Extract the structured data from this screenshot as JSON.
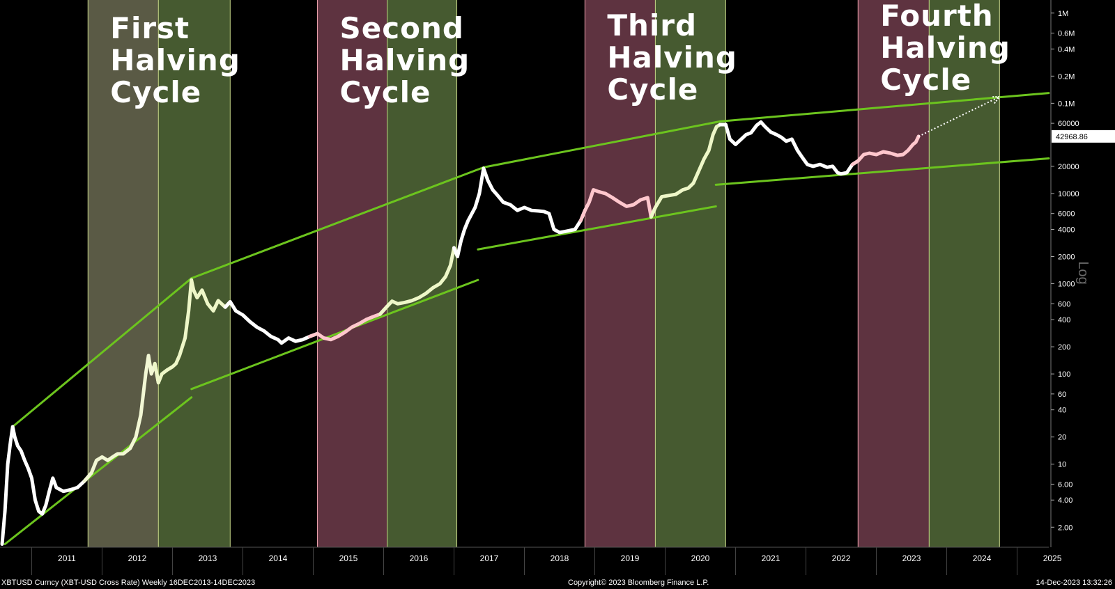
{
  "chart_data": {
    "type": "line",
    "y_scale": "log",
    "y_axis_title": "Log",
    "y_ticks": [
      "1M",
      "0.6M",
      "0.4M",
      "0.2M",
      "0.1M",
      "60000",
      "20000",
      "10000",
      "6000",
      "4000",
      "2000",
      "1000",
      "600",
      "400",
      "200",
      "100",
      "60",
      "40",
      "20",
      "10",
      "6.00",
      "4.00",
      "2.00"
    ],
    "y_tick_values": [
      1000000,
      600000,
      400000,
      200000,
      100000,
      60000,
      20000,
      10000,
      6000,
      4000,
      2000,
      1000,
      600,
      400,
      200,
      100,
      60,
      40,
      20,
      10,
      6,
      4,
      2
    ],
    "x_ticks": [
      "2011",
      "2012",
      "2013",
      "2014",
      "2015",
      "2016",
      "2017",
      "2018",
      "2019",
      "2020",
      "2021",
      "2022",
      "2023",
      "2024",
      "2025"
    ],
    "x_range": [
      2010.55,
      2025.45
    ],
    "y_range": [
      1.2,
      1300000
    ],
    "last_value_label": "42968.86",
    "cycles": [
      {
        "name": "First Halving Cycle",
        "label": "First\nHalving\nCycle",
        "pre_band": {
          "start": 2011.8,
          "end": 2012.8,
          "color": "#5a5a45"
        },
        "post_band": {
          "start": 2012.8,
          "end": 2013.82,
          "color": "#465a30"
        }
      },
      {
        "name": "Second Halving Cycle",
        "label": "Second\nHalving\nCycle",
        "pre_band": {
          "start": 2015.06,
          "end": 2016.05,
          "color": "#5e3340"
        },
        "post_band": {
          "start": 2016.05,
          "end": 2017.04,
          "color": "#465a30"
        }
      },
      {
        "name": "Third Halving Cycle",
        "label": "Third\nHalving\nCycle",
        "pre_band": {
          "start": 2018.86,
          "end": 2019.86,
          "color": "#5e3340"
        },
        "post_band": {
          "start": 2019.86,
          "end": 2020.86,
          "color": "#465a30"
        }
      },
      {
        "name": "Fourth Halving Cycle",
        "label": "Fourth\nHalving\nCycle",
        "pre_band": {
          "start": 2022.74,
          "end": 2023.75,
          "color": "#5e3340"
        },
        "post_band": {
          "start": 2023.75,
          "end": 2024.75,
          "color": "#465a30"
        }
      }
    ],
    "price_series": {
      "name": "XBTUSD",
      "points": [
        [
          2010.58,
          1.3
        ],
        [
          2010.62,
          3
        ],
        [
          2010.66,
          10
        ],
        [
          2010.7,
          18
        ],
        [
          2010.73,
          26
        ],
        [
          2010.76,
          20
        ],
        [
          2010.8,
          16
        ],
        [
          2010.85,
          14
        ],
        [
          2010.9,
          11
        ],
        [
          2010.95,
          9
        ],
        [
          2011.0,
          7
        ],
        [
          2011.05,
          4
        ],
        [
          2011.1,
          3
        ],
        [
          2011.15,
          2.8
        ],
        [
          2011.2,
          3.5
        ],
        [
          2011.25,
          5
        ],
        [
          2011.3,
          7
        ],
        [
          2011.35,
          5.5
        ],
        [
          2011.45,
          5
        ],
        [
          2011.55,
          5.2
        ],
        [
          2011.65,
          5.5
        ],
        [
          2011.75,
          6.5
        ],
        [
          2011.85,
          8
        ],
        [
          2011.92,
          11
        ],
        [
          2012.0,
          12
        ],
        [
          2012.08,
          11
        ],
        [
          2012.15,
          12
        ],
        [
          2012.22,
          13
        ],
        [
          2012.3,
          13
        ],
        [
          2012.4,
          15
        ],
        [
          2012.48,
          20
        ],
        [
          2012.55,
          35
        ],
        [
          2012.62,
          100
        ],
        [
          2012.66,
          160
        ],
        [
          2012.7,
          100
        ],
        [
          2012.75,
          130
        ],
        [
          2012.8,
          80
        ],
        [
          2012.85,
          100
        ],
        [
          2012.92,
          110
        ],
        [
          2013.0,
          120
        ],
        [
          2013.05,
          130
        ],
        [
          2013.1,
          160
        ],
        [
          2013.18,
          250
        ],
        [
          2013.23,
          500
        ],
        [
          2013.27,
          1100
        ],
        [
          2013.3,
          850
        ],
        [
          2013.35,
          700
        ],
        [
          2013.42,
          850
        ],
        [
          2013.5,
          600
        ],
        [
          2013.58,
          500
        ],
        [
          2013.65,
          650
        ],
        [
          2013.75,
          550
        ],
        [
          2013.82,
          630
        ],
        [
          2013.9,
          500
        ],
        [
          2014.0,
          450
        ],
        [
          2014.1,
          380
        ],
        [
          2014.2,
          330
        ],
        [
          2014.3,
          300
        ],
        [
          2014.4,
          260
        ],
        [
          2014.5,
          240
        ],
        [
          2014.55,
          220
        ],
        [
          2014.65,
          250
        ],
        [
          2014.75,
          230
        ],
        [
          2014.85,
          240
        ],
        [
          2014.95,
          260
        ],
        [
          2015.06,
          280
        ],
        [
          2015.15,
          250
        ],
        [
          2015.25,
          240
        ],
        [
          2015.35,
          260
        ],
        [
          2015.45,
          290
        ],
        [
          2015.55,
          330
        ],
        [
          2015.65,
          360
        ],
        [
          2015.75,
          400
        ],
        [
          2015.85,
          430
        ],
        [
          2015.95,
          460
        ],
        [
          2016.05,
          560
        ],
        [
          2016.12,
          640
        ],
        [
          2016.2,
          600
        ],
        [
          2016.3,
          620
        ],
        [
          2016.4,
          650
        ],
        [
          2016.5,
          700
        ],
        [
          2016.6,
          780
        ],
        [
          2016.7,
          900
        ],
        [
          2016.8,
          1000
        ],
        [
          2016.88,
          1200
        ],
        [
          2016.95,
          1600
        ],
        [
          2017.0,
          2500
        ],
        [
          2017.05,
          2000
        ],
        [
          2017.1,
          3000
        ],
        [
          2017.15,
          4000
        ],
        [
          2017.2,
          5000
        ],
        [
          2017.3,
          7000
        ],
        [
          2017.36,
          10000
        ],
        [
          2017.42,
          19000
        ],
        [
          2017.48,
          14000
        ],
        [
          2017.55,
          11000
        ],
        [
          2017.62,
          9500
        ],
        [
          2017.7,
          8000
        ],
        [
          2017.8,
          7500
        ],
        [
          2017.9,
          6500
        ],
        [
          2018.0,
          7000
        ],
        [
          2018.1,
          6500
        ],
        [
          2018.2,
          6400
        ],
        [
          2018.28,
          6300
        ],
        [
          2018.35,
          6000
        ],
        [
          2018.42,
          4000
        ],
        [
          2018.5,
          3700
        ],
        [
          2018.58,
          3800
        ],
        [
          2018.65,
          3900
        ],
        [
          2018.72,
          4000
        ],
        [
          2018.8,
          5000
        ],
        [
          2018.86,
          6500
        ],
        [
          2018.92,
          8000
        ],
        [
          2018.98,
          11000
        ],
        [
          2019.05,
          10500
        ],
        [
          2019.15,
          10000
        ],
        [
          2019.25,
          9000
        ],
        [
          2019.35,
          8000
        ],
        [
          2019.45,
          7200
        ],
        [
          2019.55,
          7500
        ],
        [
          2019.65,
          8500
        ],
        [
          2019.75,
          9000
        ],
        [
          2019.8,
          5500
        ],
        [
          2019.86,
          7000
        ],
        [
          2019.95,
          9200
        ],
        [
          2020.05,
          9500
        ],
        [
          2020.15,
          9800
        ],
        [
          2020.25,
          11000
        ],
        [
          2020.33,
          11500
        ],
        [
          2020.4,
          13000
        ],
        [
          2020.48,
          18000
        ],
        [
          2020.55,
          24000
        ],
        [
          2020.62,
          30000
        ],
        [
          2020.68,
          45000
        ],
        [
          2020.73,
          55000
        ],
        [
          2020.78,
          58000
        ],
        [
          2020.86,
          58000
        ],
        [
          2020.92,
          40000
        ],
        [
          2021.0,
          35000
        ],
        [
          2021.08,
          40000
        ],
        [
          2021.15,
          45000
        ],
        [
          2021.22,
          47000
        ],
        [
          2021.3,
          57000
        ],
        [
          2021.36,
          62000
        ],
        [
          2021.42,
          55000
        ],
        [
          2021.5,
          48000
        ],
        [
          2021.58,
          45000
        ],
        [
          2021.65,
          42000
        ],
        [
          2021.72,
          38000
        ],
        [
          2021.8,
          40000
        ],
        [
          2021.88,
          30000
        ],
        [
          2021.95,
          25000
        ],
        [
          2022.02,
          21000
        ],
        [
          2022.1,
          20000
        ],
        [
          2022.2,
          21000
        ],
        [
          2022.3,
          19500
        ],
        [
          2022.38,
          20000
        ],
        [
          2022.45,
          17000
        ],
        [
          2022.5,
          16500
        ],
        [
          2022.58,
          17000
        ],
        [
          2022.66,
          21000
        ],
        [
          2022.74,
          23000
        ],
        [
          2022.82,
          27000
        ],
        [
          2022.9,
          28000
        ],
        [
          2023.0,
          27000
        ],
        [
          2023.1,
          29000
        ],
        [
          2023.2,
          28000
        ],
        [
          2023.3,
          26500
        ],
        [
          2023.38,
          27000
        ],
        [
          2023.45,
          30000
        ],
        [
          2023.52,
          35000
        ],
        [
          2023.56,
          37000
        ],
        [
          2023.6,
          42968.86
        ]
      ]
    },
    "channels": [
      {
        "from": [
          2010.73,
          26
        ],
        "to": [
          2013.27,
          1150
        ]
      },
      {
        "from": [
          2010.62,
          1.3
        ],
        "to": [
          2013.27,
          55
        ]
      },
      {
        "from": [
          2013.27,
          1150
        ],
        "to": [
          2017.42,
          19500
        ]
      },
      {
        "from": [
          2013.27,
          68
        ],
        "to": [
          2017.34,
          1100
        ]
      },
      {
        "from": [
          2017.42,
          19500
        ],
        "to": [
          2020.78,
          63000
        ]
      },
      {
        "from": [
          2017.34,
          2400
        ],
        "to": [
          2020.72,
          7200
        ]
      },
      {
        "from": [
          2020.78,
          63000
        ],
        "to": [
          2025.45,
          130000
        ]
      },
      {
        "from": [
          2020.72,
          12500
        ],
        "to": [
          2025.45,
          24500
        ]
      }
    ],
    "projection": {
      "from": [
        2023.6,
        42968.86
      ],
      "to": [
        2024.75,
        118000
      ]
    }
  },
  "footer": {
    "left": "XBTUSD Curncy (XBT-USD Cross Rate)  Weekly 16DEC2013-14DEC2023",
    "center": "Copyright© 2023 Bloomberg Finance L.P.",
    "right": "14-Dec-2023 13:32:26"
  }
}
